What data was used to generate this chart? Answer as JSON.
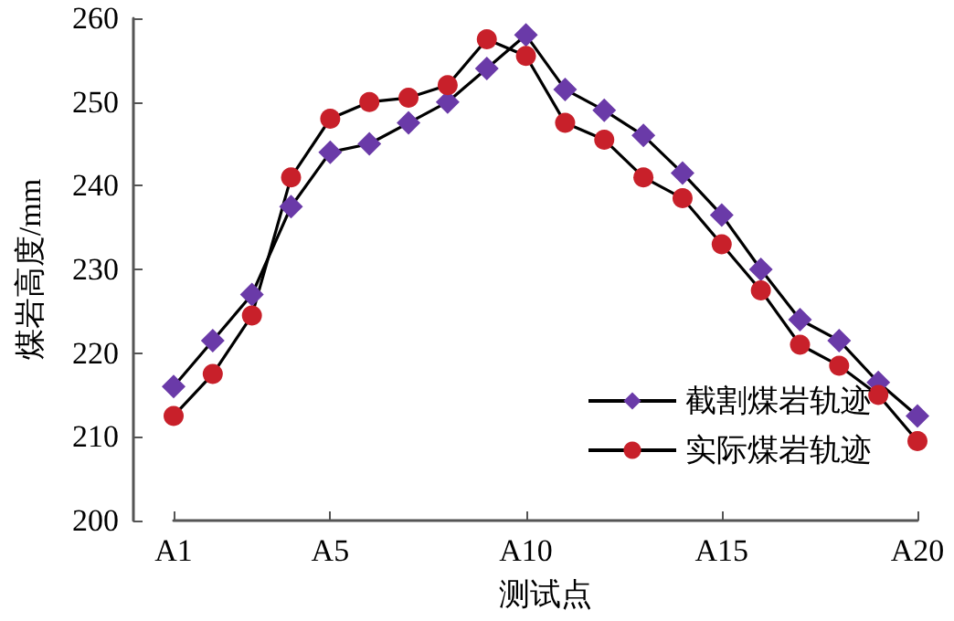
{
  "chart_data": {
    "type": "line",
    "xlabel": "测试点",
    "ylabel": "煤岩高度/mm",
    "categories": [
      "A1",
      null,
      null,
      null,
      "A5",
      null,
      null,
      null,
      null,
      "A10",
      null,
      null,
      null,
      null,
      "A15",
      null,
      null,
      null,
      null,
      "A20"
    ],
    "series": [
      {
        "name": "截割煤岩轨迹",
        "color": "#6a3aa8",
        "marker": "diamond",
        "values": [
          216,
          221.5,
          227,
          237.5,
          244,
          245,
          247.5,
          250,
          254,
          258,
          251.5,
          249,
          246,
          241.5,
          236.5,
          230,
          224,
          221.5,
          216.5,
          212.5
        ]
      },
      {
        "name": "实际煤岩轨迹",
        "color": "#c8202a",
        "marker": "circle",
        "values": [
          212.5,
          217.5,
          224.5,
          241,
          248,
          250,
          250.5,
          252,
          257.5,
          255.5,
          247.5,
          245.5,
          241,
          238.5,
          233,
          227.5,
          221,
          218.5,
          215,
          209.5
        ]
      }
    ],
    "ylim": [
      200,
      260
    ],
    "yticks": [
      200,
      210,
      220,
      230,
      240,
      250,
      260
    ],
    "grid": false,
    "legend": "bottom right",
    "line_style": "solid"
  }
}
